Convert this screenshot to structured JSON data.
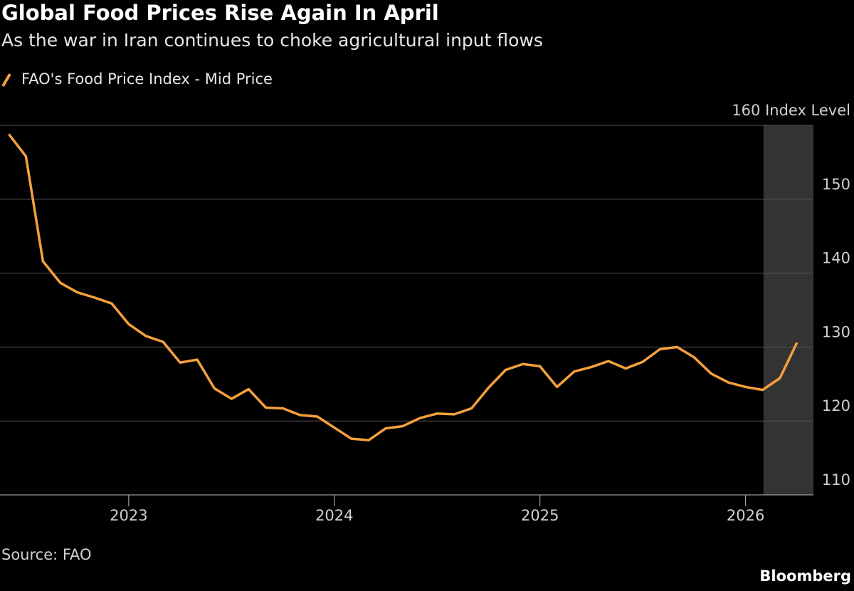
{
  "chart_data": {
    "type": "line",
    "title": "Global Food Prices Rise Again In April",
    "subtitle": "As the war in Iran continues to choke agricultural input flows",
    "source": "Source: FAO",
    "brand": "Bloomberg",
    "x": [
      2022.417,
      2022.5,
      2022.583,
      2022.667,
      2022.75,
      2022.833,
      2022.917,
      2023,
      2023.083,
      2023.167,
      2023.25,
      2023.333,
      2023.417,
      2023.5,
      2023.583,
      2023.667,
      2023.75,
      2023.833,
      2023.917,
      2024,
      2024.083,
      2024.167,
      2024.25,
      2024.333,
      2024.417,
      2024.5,
      2024.583,
      2024.667,
      2024.75,
      2024.833,
      2024.917,
      2025,
      2025.083,
      2025.167,
      2025.25,
      2025.333,
      2025.417,
      2025.5,
      2025.583,
      2025.667,
      2025.75,
      2025.833,
      2025.917,
      2026,
      2026.083,
      2026.167,
      2026.25
    ],
    "series": [
      {
        "name": "FAO's Food Price Index - Mid Price",
        "color": "#f5a03c",
        "values": [
          158.8,
          155.8,
          141.6,
          138.7,
          137.4,
          136.7,
          135.9,
          133.1,
          131.5,
          130.7,
          127.9,
          128.3,
          124.4,
          123.0,
          124.3,
          121.8,
          121.7,
          120.8,
          120.6,
          119.1,
          117.6,
          117.4,
          119.0,
          119.3,
          120.4,
          121.0,
          120.9,
          121.7,
          124.5,
          126.9,
          127.7,
          127.4,
          124.6,
          126.7,
          127.3,
          128.1,
          127.1,
          128.0,
          129.7,
          130.0,
          128.6,
          126.4,
          125.2,
          124.6,
          124.2,
          125.8,
          130.6
        ]
      }
    ],
    "xlim": [
      2022.374,
      2026.33
    ],
    "xticks": [
      2023,
      2024,
      2025,
      2026
    ],
    "ylim": [
      110,
      160
    ],
    "yticks": [
      110,
      120,
      130,
      140,
      150,
      {
        "value": 160,
        "label": "160 Index Level"
      }
    ],
    "highlight": [
      2026.087,
      2026.33
    ],
    "grid": true
  }
}
